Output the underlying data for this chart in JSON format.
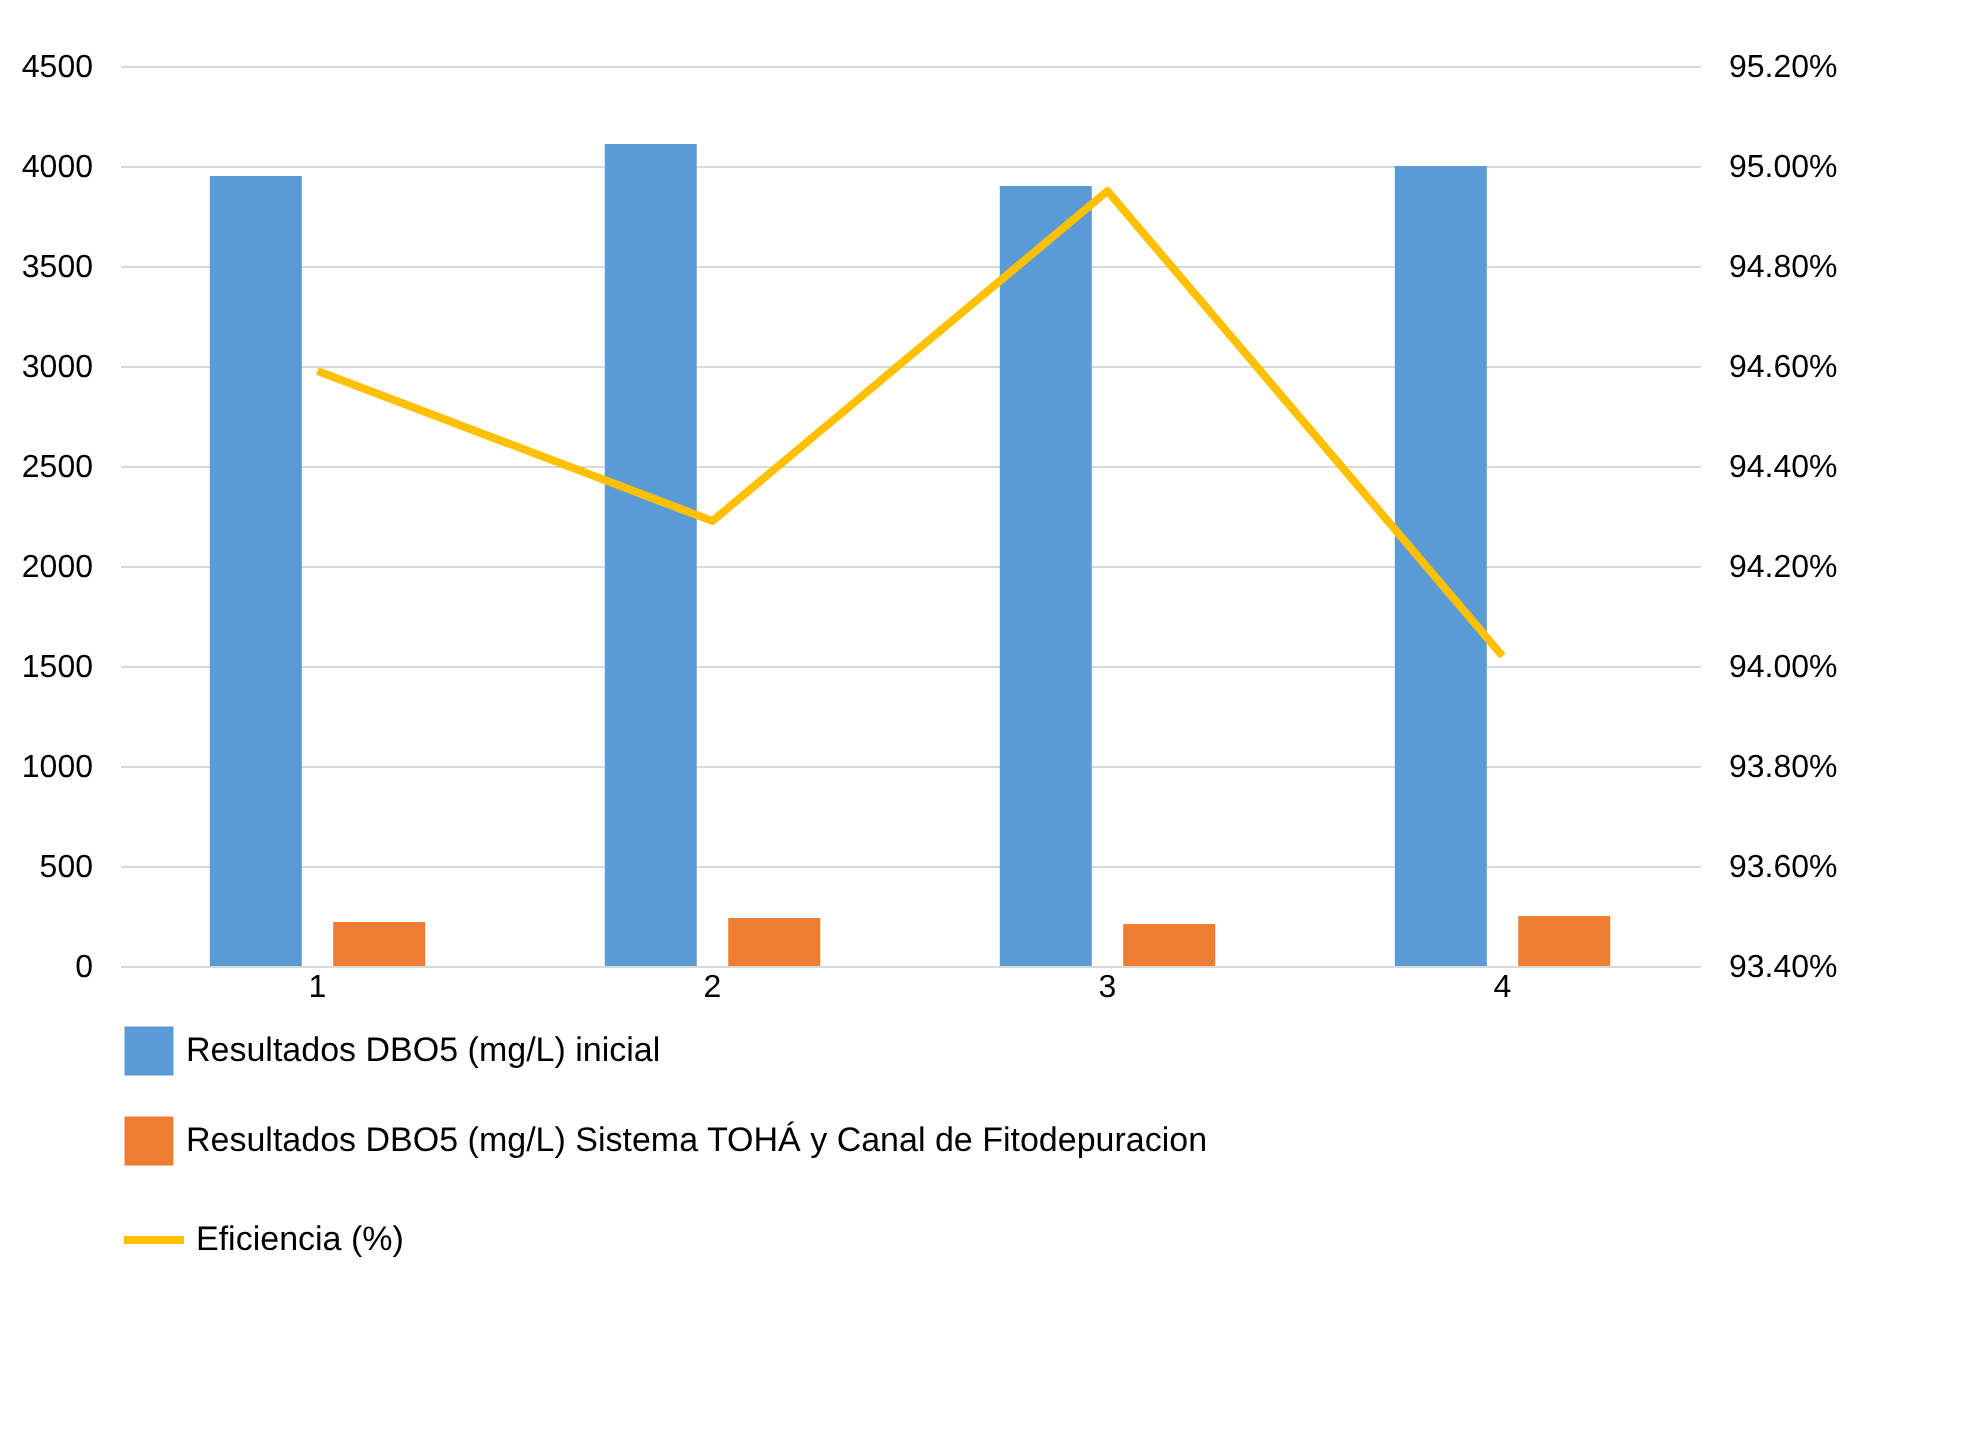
{
  "chart_data": {
    "type": "bar",
    "categories": [
      "1",
      "2",
      "3",
      "4"
    ],
    "series": [
      {
        "name": "Resultados DBO5 (mg/L) inicial",
        "color": "#5b9bd5",
        "values": [
          3950,
          4110,
          3900,
          4000
        ]
      },
      {
        "name": "Resultados DBO5 (mg/L) Sistema TOHÁ y Canal de Fitodepuracion",
        "color": "#ed7d31",
        "values": [
          220,
          240,
          210,
          250
        ]
      },
      {
        "name": "Eficiencia (%)",
        "type": "line",
        "axis": "y2",
        "color": "#ffc000",
        "values": [
          94.59,
          94.29,
          94.95,
          94.02
        ]
      }
    ],
    "ylim": [
      0,
      4500
    ],
    "yticks": [
      0,
      500,
      1000,
      1500,
      2000,
      2500,
      3000,
      3500,
      4000,
      4500
    ],
    "y2lim": [
      93.4,
      95.2
    ],
    "y2ticks": [
      {
        "value": 93.4,
        "label": "93.40%"
      },
      {
        "value": 93.6,
        "label": "93.60%"
      },
      {
        "value": 93.8,
        "label": "93.80%"
      },
      {
        "value": 94.0,
        "label": "94.00%"
      },
      {
        "value": 94.2,
        "label": "94.20%"
      },
      {
        "value": 94.4,
        "label": "94.40%"
      },
      {
        "value": 94.6,
        "label": "94.60%"
      },
      {
        "value": 94.8,
        "label": "94.80%"
      },
      {
        "value": 95.0,
        "label": "95.00%"
      },
      {
        "value": 95.2,
        "label": "95.20%"
      }
    ],
    "grid": "y",
    "legend": "bottom"
  }
}
